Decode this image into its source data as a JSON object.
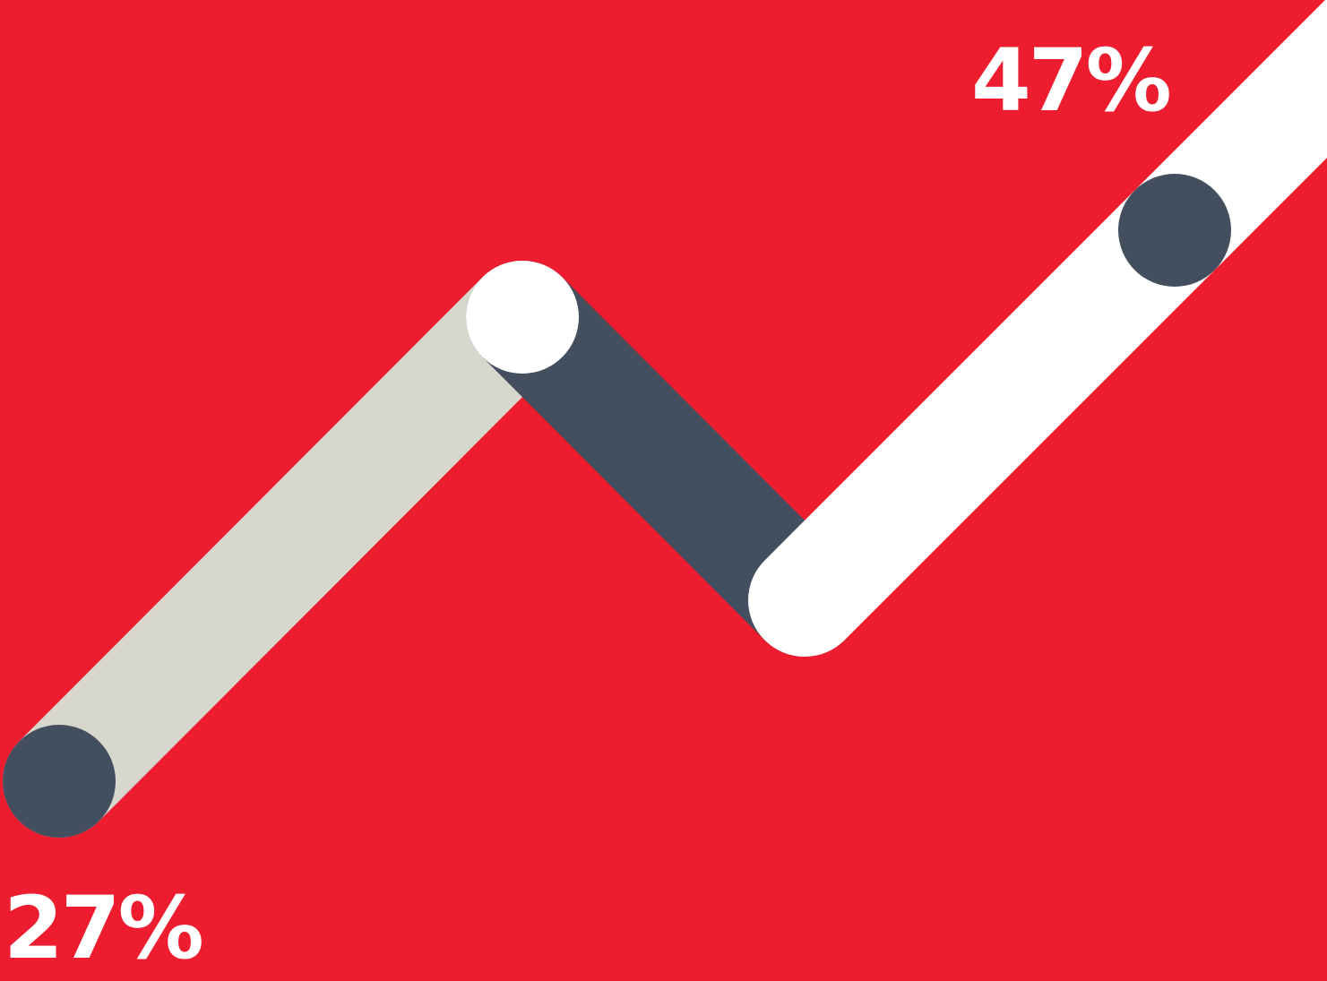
{
  "colors": {
    "background": "#ED1C2E",
    "rising_segment": "#D8D7CE",
    "falling_segment": "#434F5E",
    "final_segment": "#FFFFFF",
    "dot_dark": "#434F5E",
    "dot_light": "#FFFFFF",
    "label_text": "#FFFFFF"
  },
  "labels": {
    "start": "27%",
    "end": "47%"
  }
}
